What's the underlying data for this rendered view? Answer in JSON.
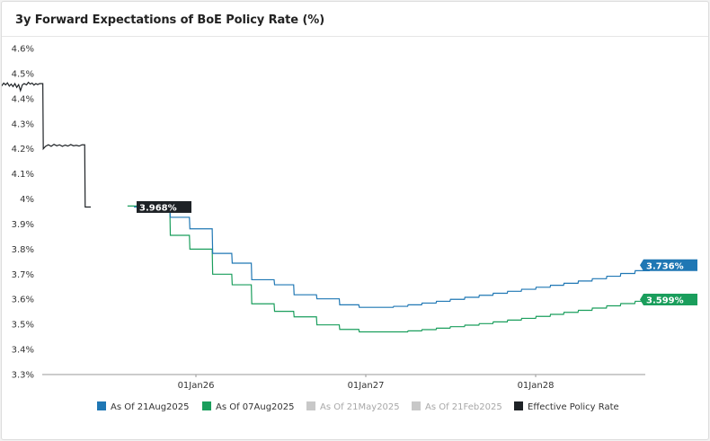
{
  "chart_data": {
    "type": "line",
    "title": "3y Forward Expectations of BoE Policy Rate (%)",
    "y_ticks": [
      "4.6%",
      "4.5%",
      "4.4%",
      "4.3%",
      "4.2%",
      "4.1%",
      "4%",
      "3.9%",
      "3.8%",
      "3.7%",
      "3.6%",
      "3.5%",
      "3.4%",
      "3.3%"
    ],
    "ylim": [
      3.3,
      4.6
    ],
    "x_ticks": [
      "01Jan26",
      "01Jan27",
      "01Jan28"
    ],
    "grid": false,
    "legend_position": "bottom",
    "series": [
      {
        "name": "As Of 21Aug2025",
        "color": "#1f77b4",
        "active": true,
        "end_label": "3.736%",
        "points": [
          [
            "2025-08-21",
            3.968
          ],
          [
            "2025-09-18",
            3.968
          ],
          [
            "2025-09-19",
            3.96
          ],
          [
            "2025-11-06",
            3.96
          ],
          [
            "2025-11-07",
            3.927
          ],
          [
            "2025-12-18",
            3.927
          ],
          [
            "2025-12-19",
            3.881
          ],
          [
            "2026-02-05",
            3.881
          ],
          [
            "2026-02-06",
            3.783
          ],
          [
            "2026-03-19",
            3.783
          ],
          [
            "2026-03-20",
            3.744
          ],
          [
            "2026-04-30",
            3.744
          ],
          [
            "2026-05-01",
            3.678
          ],
          [
            "2026-06-18",
            3.678
          ],
          [
            "2026-06-19",
            3.658
          ],
          [
            "2026-07-30",
            3.658
          ],
          [
            "2026-07-31",
            3.618
          ],
          [
            "2026-09-17",
            3.618
          ],
          [
            "2026-09-18",
            3.602
          ],
          [
            "2026-11-05",
            3.602
          ],
          [
            "2026-11-06",
            3.578
          ],
          [
            "2026-12-17",
            3.578
          ],
          [
            "2026-12-18",
            3.568
          ],
          [
            "2027-03-01",
            3.568
          ],
          [
            "2027-03-02",
            3.572
          ],
          [
            "2027-04-01",
            3.572
          ],
          [
            "2027-04-02",
            3.578
          ],
          [
            "2027-05-01",
            3.578
          ],
          [
            "2027-05-02",
            3.585
          ],
          [
            "2027-06-01",
            3.585
          ],
          [
            "2027-06-02",
            3.592
          ],
          [
            "2027-07-01",
            3.592
          ],
          [
            "2027-07-02",
            3.6
          ],
          [
            "2027-08-01",
            3.6
          ],
          [
            "2027-08-02",
            3.608
          ],
          [
            "2027-09-01",
            3.608
          ],
          [
            "2027-09-02",
            3.616
          ],
          [
            "2027-10-01",
            3.616
          ],
          [
            "2027-10-02",
            3.624
          ],
          [
            "2027-11-01",
            3.624
          ],
          [
            "2027-11-02",
            3.632
          ],
          [
            "2027-12-01",
            3.632
          ],
          [
            "2027-12-02",
            3.64
          ],
          [
            "2028-01-01",
            3.64
          ],
          [
            "2028-01-02",
            3.648
          ],
          [
            "2028-02-01",
            3.648
          ],
          [
            "2028-02-02",
            3.656
          ],
          [
            "2028-03-01",
            3.656
          ],
          [
            "2028-03-02",
            3.664
          ],
          [
            "2028-04-01",
            3.664
          ],
          [
            "2028-04-02",
            3.673
          ],
          [
            "2028-05-01",
            3.673
          ],
          [
            "2028-05-02",
            3.682
          ],
          [
            "2028-06-01",
            3.682
          ],
          [
            "2028-06-02",
            3.692
          ],
          [
            "2028-07-01",
            3.692
          ],
          [
            "2028-07-02",
            3.703
          ],
          [
            "2028-08-01",
            3.703
          ],
          [
            "2028-08-02",
            3.714
          ],
          [
            "2028-09-01",
            3.714
          ],
          [
            "2028-09-02",
            3.725
          ],
          [
            "2028-10-01",
            3.725
          ],
          [
            "2028-10-02",
            3.736
          ],
          [
            "2028-10-31",
            3.736
          ]
        ]
      },
      {
        "name": "As Of 07Aug2025",
        "color": "#1a9e5c",
        "active": true,
        "end_label": "3.599%",
        "points": [
          [
            "2025-08-07",
            3.972
          ],
          [
            "2025-09-18",
            3.972
          ],
          [
            "2025-09-19",
            3.96
          ],
          [
            "2025-11-06",
            3.96
          ],
          [
            "2025-11-07",
            3.855
          ],
          [
            "2025-12-18",
            3.855
          ],
          [
            "2025-12-19",
            3.8
          ],
          [
            "2026-02-05",
            3.8
          ],
          [
            "2026-02-06",
            3.7
          ],
          [
            "2026-03-19",
            3.7
          ],
          [
            "2026-03-20",
            3.658
          ],
          [
            "2026-04-30",
            3.658
          ],
          [
            "2026-05-01",
            3.582
          ],
          [
            "2026-06-18",
            3.582
          ],
          [
            "2026-06-19",
            3.552
          ],
          [
            "2026-07-30",
            3.552
          ],
          [
            "2026-07-31",
            3.53
          ],
          [
            "2026-09-17",
            3.53
          ],
          [
            "2026-09-18",
            3.498
          ],
          [
            "2026-11-05",
            3.498
          ],
          [
            "2026-11-06",
            3.48
          ],
          [
            "2026-12-17",
            3.48
          ],
          [
            "2026-12-18",
            3.47
          ],
          [
            "2027-04-01",
            3.47
          ],
          [
            "2027-04-02",
            3.474
          ],
          [
            "2027-05-01",
            3.474
          ],
          [
            "2027-05-02",
            3.479
          ],
          [
            "2027-06-01",
            3.479
          ],
          [
            "2027-06-02",
            3.485
          ],
          [
            "2027-07-01",
            3.485
          ],
          [
            "2027-07-02",
            3.491
          ],
          [
            "2027-08-01",
            3.491
          ],
          [
            "2027-08-02",
            3.497
          ],
          [
            "2027-09-01",
            3.497
          ],
          [
            "2027-09-02",
            3.503
          ],
          [
            "2027-10-01",
            3.503
          ],
          [
            "2027-10-02",
            3.51
          ],
          [
            "2027-11-01",
            3.51
          ],
          [
            "2027-11-02",
            3.517
          ],
          [
            "2027-12-01",
            3.517
          ],
          [
            "2027-12-02",
            3.524
          ],
          [
            "2028-01-01",
            3.524
          ],
          [
            "2028-01-02",
            3.532
          ],
          [
            "2028-02-01",
            3.532
          ],
          [
            "2028-02-02",
            3.54
          ],
          [
            "2028-03-01",
            3.54
          ],
          [
            "2028-03-02",
            3.548
          ],
          [
            "2028-04-01",
            3.548
          ],
          [
            "2028-04-02",
            3.556
          ],
          [
            "2028-05-01",
            3.556
          ],
          [
            "2028-05-02",
            3.565
          ],
          [
            "2028-06-01",
            3.565
          ],
          [
            "2028-06-02",
            3.574
          ],
          [
            "2028-07-01",
            3.574
          ],
          [
            "2028-07-02",
            3.583
          ],
          [
            "2028-08-01",
            3.583
          ],
          [
            "2028-08-02",
            3.592
          ],
          [
            "2028-09-01",
            3.592
          ],
          [
            "2028-09-02",
            3.599
          ],
          [
            "2028-10-31",
            3.599
          ]
        ]
      },
      {
        "name": "Effective Policy Rate",
        "color": "#1e2226",
        "active": true,
        "end_label": "3.968%",
        "points": [
          [
            "2024-11-01",
            4.457
          ],
          [
            "2024-11-06",
            4.46
          ],
          [
            "2024-11-10",
            4.452
          ],
          [
            "2024-11-14",
            4.462
          ],
          [
            "2024-11-18",
            4.455
          ],
          [
            "2024-11-22",
            4.463
          ],
          [
            "2024-11-26",
            4.45
          ],
          [
            "2024-11-30",
            4.458
          ],
          [
            "2024-12-04",
            4.448
          ],
          [
            "2024-12-08",
            4.46
          ],
          [
            "2024-12-12",
            4.445
          ],
          [
            "2024-12-16",
            4.456
          ],
          [
            "2024-12-20",
            4.432
          ],
          [
            "2024-12-24",
            4.455
          ],
          [
            "2024-12-28",
            4.46
          ],
          [
            "2025-01-02",
            4.455
          ],
          [
            "2025-01-06",
            4.465
          ],
          [
            "2025-01-10",
            4.458
          ],
          [
            "2025-01-14",
            4.462
          ],
          [
            "2025-01-18",
            4.454
          ],
          [
            "2025-01-22",
            4.46
          ],
          [
            "2025-01-26",
            4.456
          ],
          [
            "2025-01-30",
            4.46
          ],
          [
            "2025-02-06",
            4.46
          ],
          [
            "2025-02-07",
            4.2
          ],
          [
            "2025-02-12",
            4.21
          ],
          [
            "2025-02-18",
            4.216
          ],
          [
            "2025-02-24",
            4.21
          ],
          [
            "2025-03-02",
            4.218
          ],
          [
            "2025-03-08",
            4.212
          ],
          [
            "2025-03-14",
            4.216
          ],
          [
            "2025-03-20",
            4.21
          ],
          [
            "2025-03-26",
            4.215
          ],
          [
            "2025-04-01",
            4.211
          ],
          [
            "2025-04-07",
            4.217
          ],
          [
            "2025-04-13",
            4.212
          ],
          [
            "2025-04-19",
            4.214
          ],
          [
            "2025-04-25",
            4.211
          ],
          [
            "2025-05-01",
            4.216
          ],
          [
            "2025-05-07",
            4.216
          ],
          [
            "2025-05-08",
            3.968
          ],
          [
            "2025-05-20",
            3.968
          ]
        ]
      }
    ],
    "inactive_series": [
      {
        "name": "As Of 21May2025",
        "color": "#c8c8c8",
        "active": false
      },
      {
        "name": "As Of 21Feb2025",
        "color": "#c8c8c8",
        "active": false
      }
    ]
  },
  "legend": [
    {
      "label": "As Of 21Aug2025",
      "color": "#1f77b4",
      "active": true
    },
    {
      "label": "As Of 07Aug2025",
      "color": "#1a9e5c",
      "active": true
    },
    {
      "label": "As Of 21May2025",
      "color": "#c8c8c8",
      "active": false
    },
    {
      "label": "As Of 21Feb2025",
      "color": "#c8c8c8",
      "active": false
    },
    {
      "label": "Effective Policy Rate",
      "color": "#1e2226",
      "active": true
    }
  ]
}
